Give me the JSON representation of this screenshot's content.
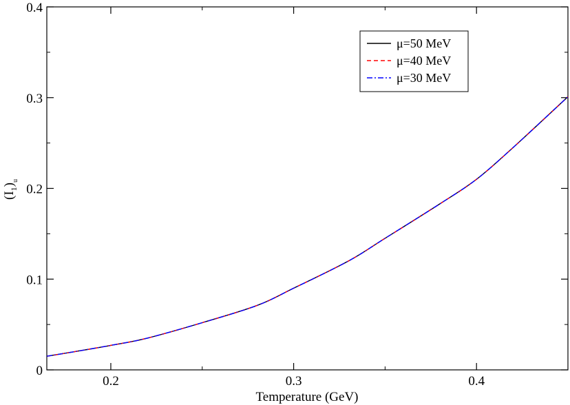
{
  "chart_data": {
    "type": "line",
    "xlabel": "Temperature (GeV)",
    "ylabel_main": "(I",
    "ylabel_sub1": "1",
    "ylabel_close": ")",
    "ylabel_sub2": "u",
    "xlim": [
      0.165,
      0.45
    ],
    "ylim": [
      0,
      0.4
    ],
    "xticks": [
      0.2,
      0.3,
      0.4
    ],
    "xtick_labels": [
      "0.2",
      "0.3",
      "0.4"
    ],
    "yticks": [
      0,
      0.1,
      0.2,
      0.3,
      0.4
    ],
    "ytick_labels": [
      "0",
      "0.1",
      "0.2",
      "0.3",
      "0.4"
    ],
    "grid": false,
    "legend_position": "top-right",
    "x": [
      0.165,
      0.18,
      0.2,
      0.22,
      0.25,
      0.28,
      0.3,
      0.33,
      0.35,
      0.38,
      0.4,
      0.42,
      0.45
    ],
    "series": [
      {
        "name": "μ=50 MeV",
        "color": "#000000",
        "dash": "solid",
        "values": [
          0.015,
          0.02,
          0.027,
          0.035,
          0.052,
          0.071,
          0.09,
          0.12,
          0.145,
          0.183,
          0.21,
          0.245,
          0.301
        ]
      },
      {
        "name": "μ=40 MeV",
        "color": "#ff0000",
        "dash": "dashed",
        "values": [
          0.015,
          0.02,
          0.027,
          0.035,
          0.052,
          0.071,
          0.09,
          0.12,
          0.145,
          0.183,
          0.21,
          0.245,
          0.301
        ]
      },
      {
        "name": "μ=30 MeV",
        "color": "#0000ff",
        "dash": "dashdot",
        "values": [
          0.015,
          0.02,
          0.027,
          0.035,
          0.052,
          0.071,
          0.09,
          0.12,
          0.145,
          0.183,
          0.21,
          0.245,
          0.301
        ]
      }
    ]
  }
}
